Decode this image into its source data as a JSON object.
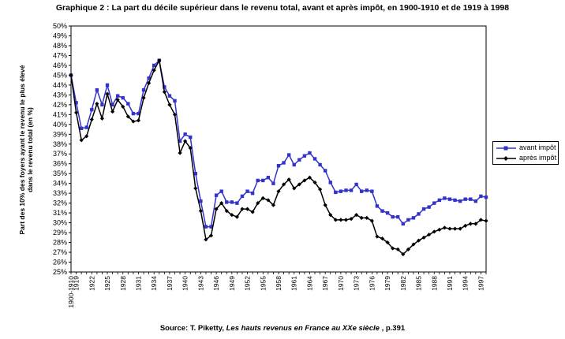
{
  "chart_data": {
    "type": "line",
    "title": "Graphique 2 : La part du décile supérieur dans le revenu total, avant et après impôt, en 1900-1910 et de 1919 à 1998",
    "ylabel_line1": "Part des 10% des foyers ayant le revenu le plus élevé",
    "ylabel_line2": "dans le revenu total (en %)",
    "source_prefix": "Source: T. Piketty, ",
    "source_book": "Les hauts revenus en France au XXe siècle",
    "source_suffix": " , p.391",
    "ylim": [
      25,
      50
    ],
    "yticks": [
      "25%",
      "26%",
      "27%",
      "28%",
      "29%",
      "30%",
      "31%",
      "32%",
      "33%",
      "34%",
      "35%",
      "36%",
      "37%",
      "38%",
      "39%",
      "40%",
      "41%",
      "42%",
      "43%",
      "44%",
      "45%",
      "46%",
      "47%",
      "48%",
      "49%",
      "50%"
    ],
    "xtick_labels": [
      "1900-1910",
      "1919",
      "1922",
      "1925",
      "1928",
      "1931",
      "1934",
      "1937",
      "1940",
      "1943",
      "1946",
      "1949",
      "1952",
      "1955",
      "1958",
      "1961",
      "1964",
      "1967",
      "1970",
      "1973",
      "1976",
      "1979",
      "1982",
      "1985",
      "1988",
      "1991",
      "1994",
      "1997"
    ],
    "categories": [
      "1900-1910",
      "1919",
      "1920",
      "1921",
      "1922",
      "1923",
      "1924",
      "1925",
      "1926",
      "1927",
      "1928",
      "1929",
      "1930",
      "1931",
      "1932",
      "1933",
      "1934",
      "1935",
      "1936",
      "1937",
      "1938",
      "1939",
      "1940",
      "1941",
      "1942",
      "1943",
      "1944",
      "1945",
      "1946",
      "1947",
      "1948",
      "1949",
      "1950",
      "1951",
      "1952",
      "1953",
      "1954",
      "1955",
      "1956",
      "1957",
      "1958",
      "1959",
      "1960",
      "1961",
      "1962",
      "1963",
      "1964",
      "1965",
      "1966",
      "1967",
      "1968",
      "1969",
      "1970",
      "1971",
      "1972",
      "1973",
      "1974",
      "1975",
      "1976",
      "1977",
      "1978",
      "1979",
      "1980",
      "1981",
      "1982",
      "1983",
      "1984",
      "1985",
      "1986",
      "1987",
      "1988",
      "1989",
      "1990",
      "1991",
      "1992",
      "1993",
      "1994",
      "1995",
      "1996",
      "1997",
      "1998"
    ],
    "legend_position": "right",
    "grid": true,
    "series": [
      {
        "name": "avant impôt",
        "color": "#3333cc",
        "marker": "square",
        "values": [
          45.0,
          42.2,
          39.6,
          39.7,
          41.5,
          43.5,
          42.0,
          44.0,
          42.0,
          42.9,
          42.7,
          42.1,
          41.1,
          41.1,
          43.5,
          44.7,
          46.0,
          46.5,
          43.8,
          42.9,
          42.4,
          38.3,
          39.0,
          38.7,
          35.0,
          32.2,
          29.6,
          29.6,
          32.8,
          33.2,
          32.1,
          32.1,
          32.0,
          32.7,
          33.2,
          33.0,
          34.3,
          34.3,
          34.6,
          34.0,
          35.8,
          36.1,
          36.9,
          35.9,
          36.4,
          36.8,
          37.1,
          36.5,
          35.9,
          35.3,
          34.1,
          33.1,
          33.2,
          33.3,
          33.3,
          33.9,
          33.2,
          33.3,
          33.2,
          31.7,
          31.2,
          31.0,
          30.6,
          30.6,
          29.9,
          30.3,
          30.5,
          30.9,
          31.4,
          31.6,
          32.0,
          32.3,
          32.5,
          32.4,
          32.3,
          32.2,
          32.4,
          32.4,
          32.2,
          32.7,
          32.6
        ]
      },
      {
        "name": "après impôt",
        "color": "#000000",
        "marker": "diamond",
        "values": [
          45.0,
          41.2,
          38.4,
          38.8,
          40.5,
          42.1,
          40.6,
          43.1,
          41.3,
          42.5,
          41.8,
          40.8,
          40.3,
          40.4,
          42.7,
          44.2,
          45.5,
          46.5,
          43.3,
          42.0,
          41.0,
          37.1,
          38.3,
          37.6,
          33.5,
          31.2,
          28.3,
          28.7,
          31.4,
          32.0,
          31.2,
          30.8,
          30.6,
          31.4,
          31.4,
          31.1,
          32.0,
          32.5,
          32.3,
          31.8,
          33.2,
          33.9,
          34.4,
          33.5,
          33.9,
          34.3,
          34.6,
          34.1,
          33.4,
          31.8,
          30.8,
          30.3,
          30.3,
          30.3,
          30.4,
          30.8,
          30.5,
          30.5,
          30.2,
          28.6,
          28.4,
          28.0,
          27.4,
          27.3,
          26.8,
          27.3,
          27.8,
          28.2,
          28.5,
          28.8,
          29.1,
          29.3,
          29.5,
          29.4,
          29.4,
          29.4,
          29.7,
          29.9,
          29.9,
          30.3,
          30.2
        ]
      }
    ]
  }
}
